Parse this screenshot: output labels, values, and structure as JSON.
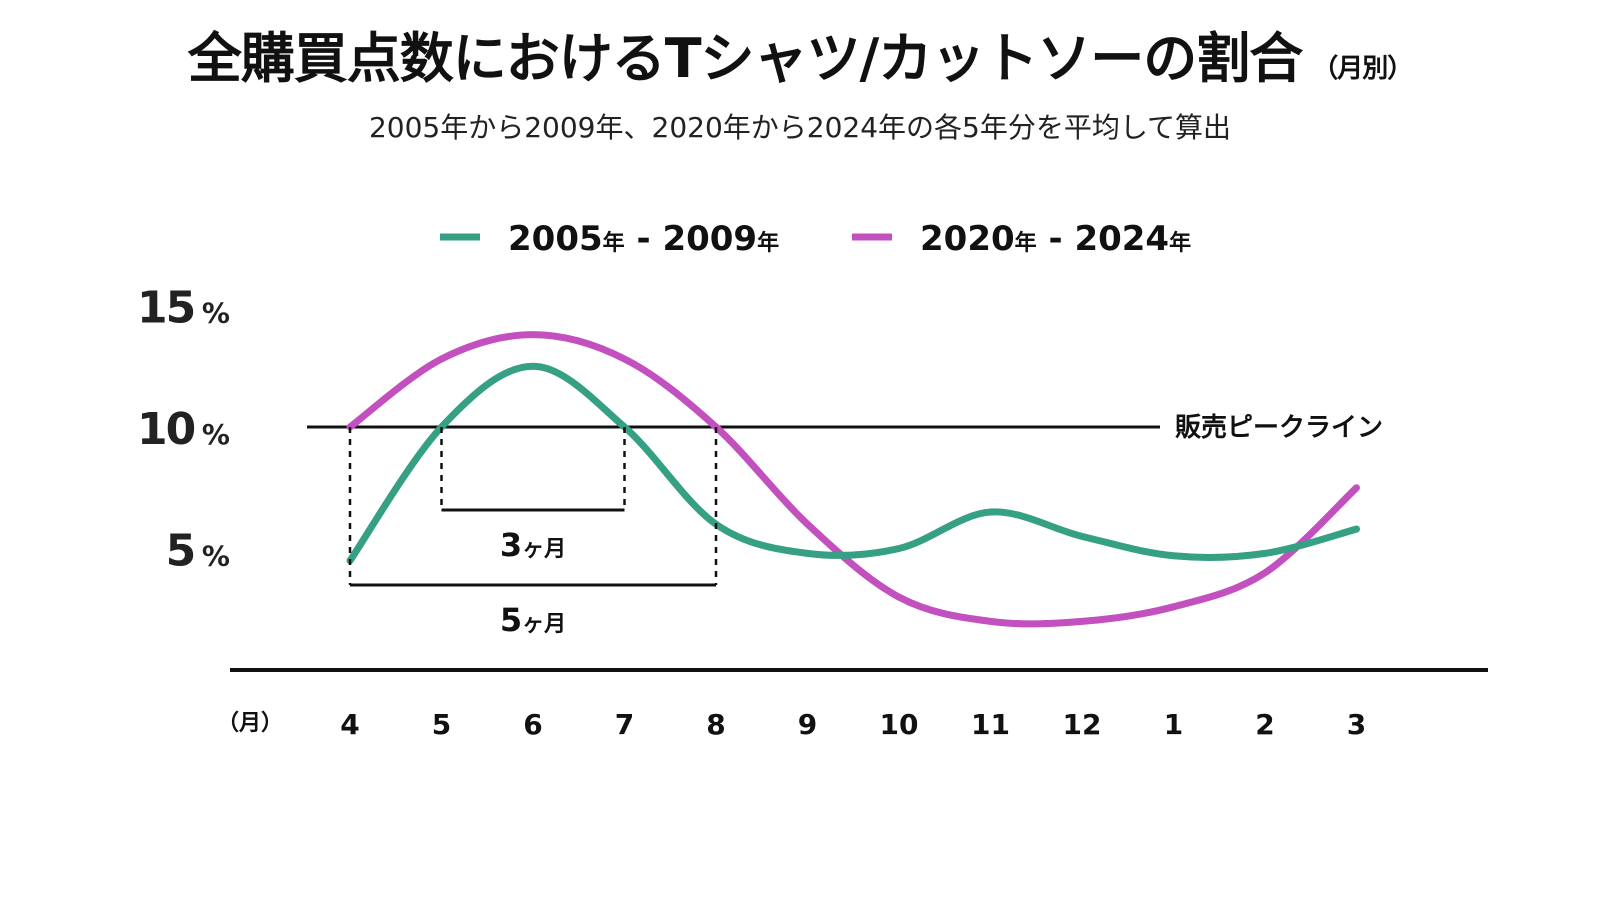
{
  "title": "全購買点数におけるTシャツ/カットソーの割合",
  "title_unit": "（月別）",
  "subtitle": "2005年から2009年、2020年から2024年の各5年分を平均して算出",
  "chart_data": {
    "type": "line",
    "categories": [
      "4",
      "5",
      "6",
      "7",
      "8",
      "9",
      "10",
      "11",
      "12",
      "1",
      "2",
      "3"
    ],
    "x_unit_label": "（月）",
    "y_ticks": [
      {
        "num": "15",
        "unit": "%",
        "value": 15
      },
      {
        "num": "10",
        "unit": "%",
        "value": 10
      },
      {
        "num": "5",
        "unit": "%",
        "value": 5
      }
    ],
    "ylim": [
      0,
      16
    ],
    "grid": false,
    "legend_position": "top",
    "series": [
      {
        "name": "2005年 - 2009年",
        "name_parts": [
          "2005",
          "年",
          " - 2009",
          "年"
        ],
        "color": "#35a084",
        "values": [
          4.5,
          10.0,
          12.5,
          10.0,
          6.0,
          4.8,
          5.0,
          6.5,
          5.5,
          4.7,
          4.8,
          5.8
        ]
      },
      {
        "name": "2020年 - 2024年",
        "name_parts": [
          "2020",
          "年",
          " - 2024",
          "年"
        ],
        "color": "#c250bf",
        "values": [
          10.0,
          12.8,
          13.8,
          12.8,
          10.0,
          6.0,
          3.0,
          2.0,
          2.0,
          2.6,
          4.0,
          7.5
        ]
      }
    ],
    "reference_line": {
      "label": "販売ピークライン",
      "value": 10
    },
    "annotations": [
      {
        "num": "3",
        "unit": "ヶ月",
        "from": "5",
        "to": "7"
      },
      {
        "num": "5",
        "unit": "ヶ月",
        "from": "4",
        "to": "8"
      }
    ]
  }
}
